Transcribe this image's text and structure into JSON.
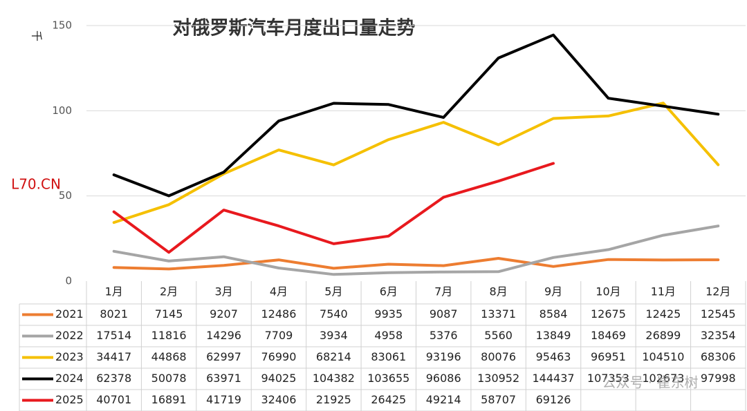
{
  "chart_data": {
    "type": "line",
    "title": "对俄罗斯汽车月度出口量走势",
    "y_label": "千",
    "source": "L70.CN",
    "watermark": "公众号 · 崔东树",
    "categories": [
      "1月",
      "2月",
      "3月",
      "4月",
      "5月",
      "6月",
      "7月",
      "8月",
      "9月",
      "10月",
      "11月",
      "12月"
    ],
    "ylim": [
      0,
      150000
    ],
    "yticks": [
      {
        "value": 0,
        "label": "0"
      },
      {
        "value": 50000,
        "label": "50"
      },
      {
        "value": 100000,
        "label": "100"
      },
      {
        "value": 150000,
        "label": "150"
      }
    ],
    "grid": true,
    "series": [
      {
        "name": "2021",
        "color": "#ed7d31",
        "values": [
          8021,
          7145,
          9207,
          12486,
          7540,
          9935,
          9087,
          13371,
          8584,
          12675,
          12425,
          12545
        ]
      },
      {
        "name": "2022",
        "color": "#a5a5a5",
        "values": [
          17514,
          11816,
          14296,
          7709,
          3934,
          4958,
          5376,
          5560,
          13849,
          18469,
          26899,
          32354
        ]
      },
      {
        "name": "2023",
        "color": "#f5c000",
        "values": [
          34417,
          44868,
          62997,
          76990,
          68214,
          83061,
          93196,
          80076,
          95463,
          96951,
          104510,
          68306
        ]
      },
      {
        "name": "2024",
        "color": "#000000",
        "values": [
          62378,
          50078,
          63971,
          94025,
          104382,
          103655,
          96086,
          130952,
          144437,
          107353,
          102673,
          97998
        ]
      },
      {
        "name": "2025",
        "color": "#e8191e",
        "values": [
          40701,
          16891,
          41719,
          32406,
          21925,
          26425,
          49214,
          58707,
          69126,
          null,
          null,
          null
        ]
      }
    ]
  }
}
